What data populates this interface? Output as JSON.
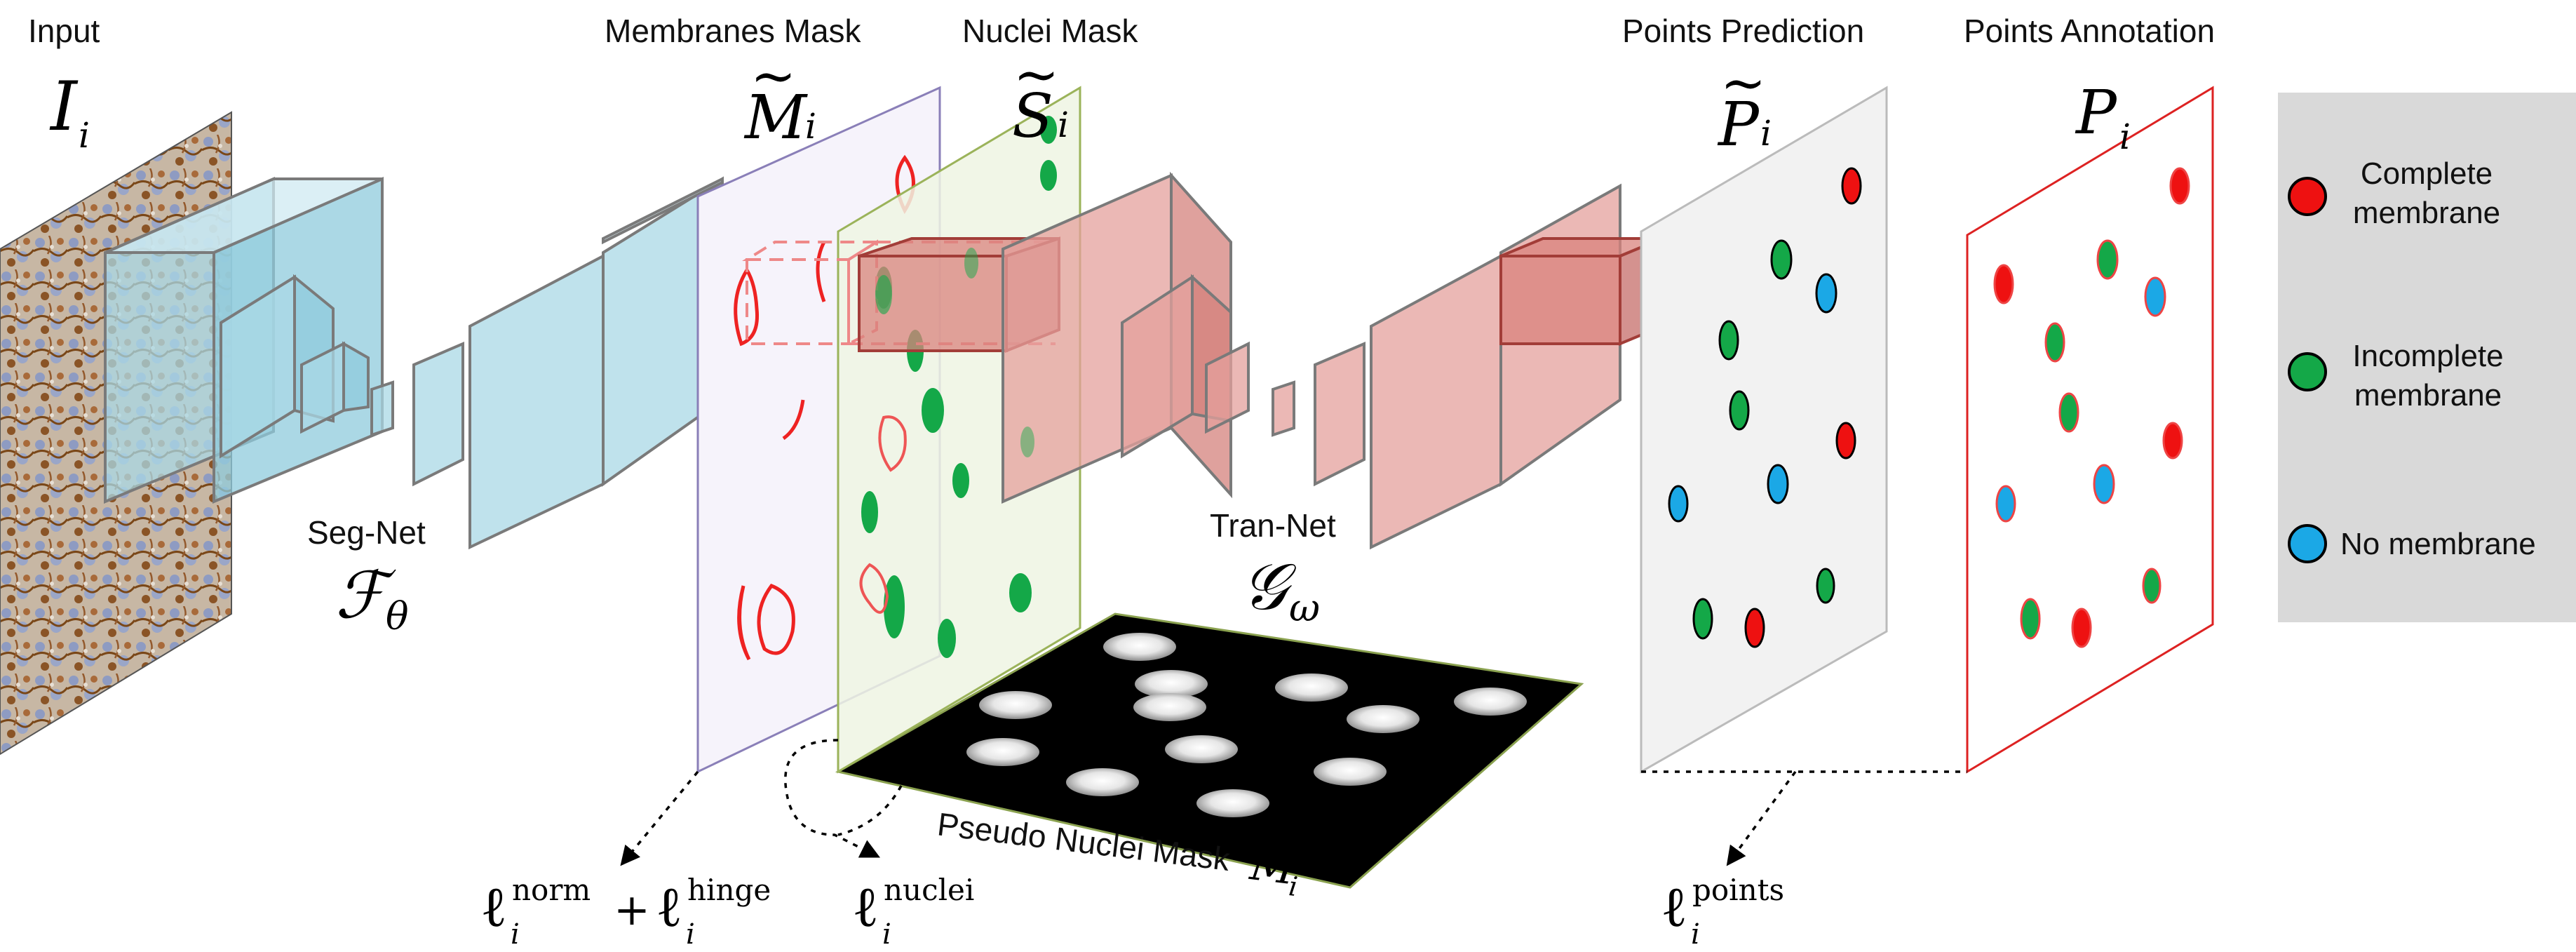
{
  "headings": {
    "input": "Input",
    "membranes_mask": "Membranes Mask",
    "nuclei_mask": "Nuclei Mask",
    "points_prediction": "Points Prediction",
    "points_annotation": "Points Annotation"
  },
  "symbols": {
    "input": "I",
    "input_sub": "i",
    "membranes": "M",
    "membranes_sub": "i",
    "nuclei": "S",
    "nuclei_sub": "i",
    "prediction": "P",
    "prediction_sub": "i",
    "annotation": "P",
    "annotation_sub": "i",
    "pseudo": "M",
    "pseudo_sub": "i",
    "tilde": "~"
  },
  "networks": {
    "seg_name": "Seg-Net",
    "seg_symbol": "ℱ",
    "seg_sub": "θ",
    "tran_name": "Tran-Net",
    "tran_symbol": "𝒢",
    "tran_sub": "ω"
  },
  "pseudo_mask_label": "Pseudo Nuclei Mask",
  "losses": {
    "l": "ℓ",
    "sub": "i",
    "norm": "norm",
    "plus": "+",
    "hinge": "hinge",
    "nuclei": "nuclei",
    "points": "points"
  },
  "legend": {
    "items": [
      {
        "line1": "Complete",
        "line2": "membrane",
        "color": "#ee1111"
      },
      {
        "line1": "Incomplete",
        "line2": "membrane",
        "color": "#14a848"
      },
      {
        "line1": "No membrane",
        "line2": "",
        "color": "#1ba8e6"
      }
    ],
    "background": "#d9d9d9"
  },
  "colors": {
    "seg_net": "#a9d8e6",
    "tran_net": "#e4a09c",
    "complete": "#ee1111",
    "incomplete": "#14a848",
    "none": "#1ba8e6"
  }
}
